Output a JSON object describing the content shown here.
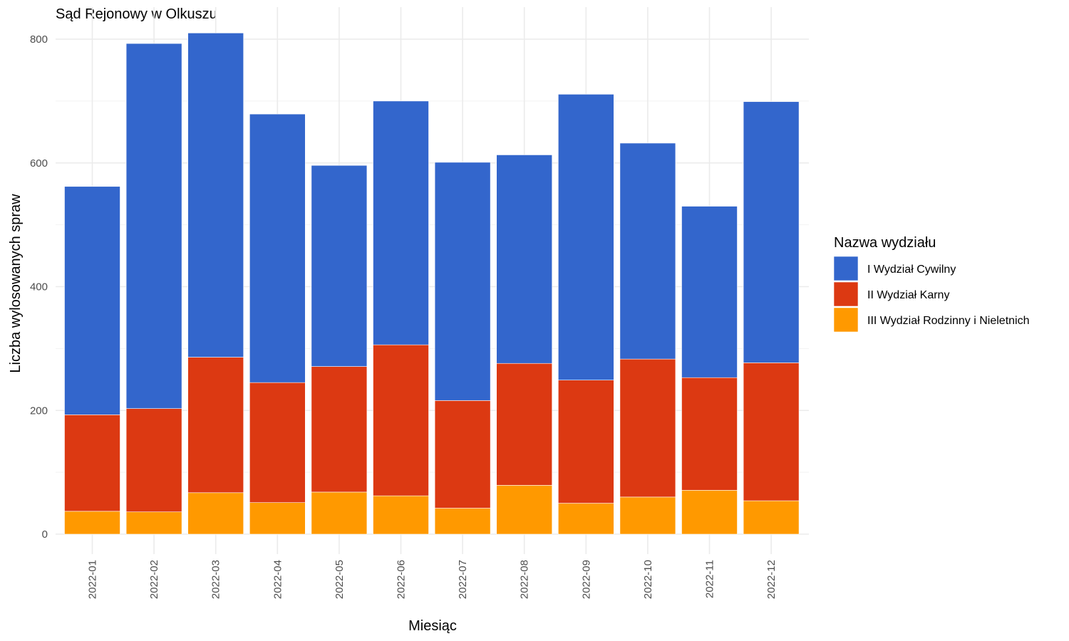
{
  "chart_data": {
    "type": "bar",
    "stacked": true,
    "title": "Sąd Rejonowy w Olkuszu",
    "xlabel": "Miesiąc",
    "ylabel": "Liczba wylosowanych spraw",
    "ylim": [
      0,
      810
    ],
    "yticks": [
      0,
      200,
      400,
      600,
      800
    ],
    "grid": true,
    "legend_title": "Nazwa wydziału",
    "legend_position": "right",
    "categories": [
      "2022-01",
      "2022-02",
      "2022-03",
      "2022-04",
      "2022-05",
      "2022-06",
      "2022-07",
      "2022-08",
      "2022-09",
      "2022-10",
      "2022-11",
      "2022-12"
    ],
    "series": [
      {
        "name": "III Wydział Rodzinny i Nieletnich",
        "color": "#FF9900",
        "values": [
          37,
          36,
          67,
          51,
          68,
          62,
          42,
          79,
          50,
          60,
          71,
          54
        ]
      },
      {
        "name": "II Wydział Karny",
        "color": "#DC3912",
        "values": [
          156,
          167,
          219,
          194,
          203,
          244,
          174,
          197,
          199,
          223,
          182,
          223
        ]
      },
      {
        "name": "I Wydział Cywilny",
        "color": "#3366CC",
        "values": [
          369,
          590,
          524,
          434,
          325,
          394,
          385,
          337,
          462,
          349,
          277,
          422
        ]
      }
    ],
    "legend_order": [
      "I Wydział Cywilny",
      "II Wydział Karny",
      "III Wydział Rodzinny i Nieletnich"
    ]
  }
}
